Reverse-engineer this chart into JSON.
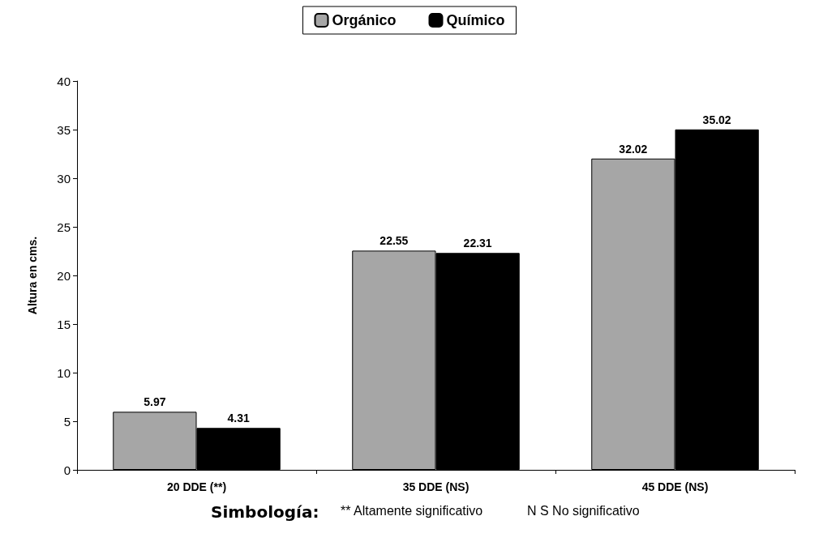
{
  "chart_data": {
    "type": "bar",
    "ylabel": "Altura en cms.",
    "categories": [
      "20 DDE (**)",
      "35 DDE (NS)",
      "45 DDE (NS)"
    ],
    "series": [
      {
        "name": "Orgánico",
        "color": "#a6a6a6",
        "values": [
          5.97,
          22.55,
          32.02
        ]
      },
      {
        "name": "Químico",
        "color": "#000000",
        "values": [
          4.31,
          22.31,
          35.02
        ]
      }
    ],
    "ylim": [
      0,
      40
    ],
    "yticks": [
      0,
      5,
      10,
      15,
      20,
      25,
      30,
      35,
      40
    ],
    "grid": false,
    "legend": "top",
    "data_labels": true,
    "annotations": [
      "Simbología:",
      "** Altamente significativo",
      "N S No significativo"
    ]
  }
}
